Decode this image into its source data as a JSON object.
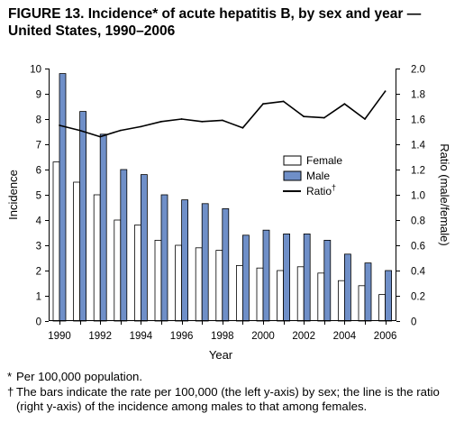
{
  "figure": {
    "title_line1": "FIGURE 13. Incidence* of acute hepatitis B, by sex and year —",
    "title_line2": "United States, 1990–2006"
  },
  "chart_data": {
    "type": "bar",
    "x": [
      1990,
      1991,
      1992,
      1993,
      1994,
      1995,
      1996,
      1997,
      1998,
      1999,
      2000,
      2001,
      2002,
      2003,
      2004,
      2005,
      2006
    ],
    "x_tick_labels": [
      "1990",
      "1992",
      "1994",
      "1996",
      "1998",
      "2000",
      "2002",
      "2004",
      "2006"
    ],
    "series": [
      {
        "name": "Female",
        "kind": "bar",
        "axis": "left",
        "color": "#ffffff",
        "values": [
          6.3,
          5.5,
          5.0,
          4.0,
          3.8,
          3.2,
          3.0,
          2.9,
          2.8,
          2.2,
          2.1,
          2.0,
          2.15,
          1.9,
          1.6,
          1.4,
          1.05
        ]
      },
      {
        "name": "Male",
        "kind": "bar",
        "axis": "left",
        "color": "#6f8fc8",
        "values": [
          9.8,
          8.3,
          7.4,
          6.0,
          5.8,
          5.0,
          4.8,
          4.65,
          4.45,
          3.4,
          3.6,
          3.45,
          3.45,
          3.2,
          2.65,
          2.3,
          2.0
        ]
      },
      {
        "name": "Ratio",
        "kind": "line",
        "axis": "right",
        "color": "#000000",
        "values": [
          1.55,
          1.51,
          1.46,
          1.51,
          1.54,
          1.58,
          1.6,
          1.58,
          1.59,
          1.53,
          1.72,
          1.74,
          1.62,
          1.61,
          1.72,
          1.6,
          1.82
        ]
      }
    ],
    "ratio_legend_mark": "†",
    "xlabel": "Year",
    "ylabel": "Incidence",
    "y2label": "Ratio (male/female)",
    "ylim": [
      0,
      10
    ],
    "y_ticks": [
      0,
      1,
      2,
      3,
      4,
      5,
      6,
      7,
      8,
      9,
      10
    ],
    "y2lim": [
      0,
      2.0
    ],
    "y2_ticks": [
      "0",
      "0.2",
      "0.4",
      "0.6",
      "0.8",
      "1.0",
      "1.2",
      "1.4",
      "1.6",
      "1.8",
      "2.0"
    ],
    "legend_position": "center-right",
    "grid": false
  },
  "footnotes": [
    {
      "mark": "*",
      "text": "Per 100,000 population."
    },
    {
      "mark": "†",
      "text": "The bars indicate the rate per 100,000 (the left y-axis) by sex; the line is the ratio (right y-axis) of the incidence among males to that among females."
    }
  ]
}
